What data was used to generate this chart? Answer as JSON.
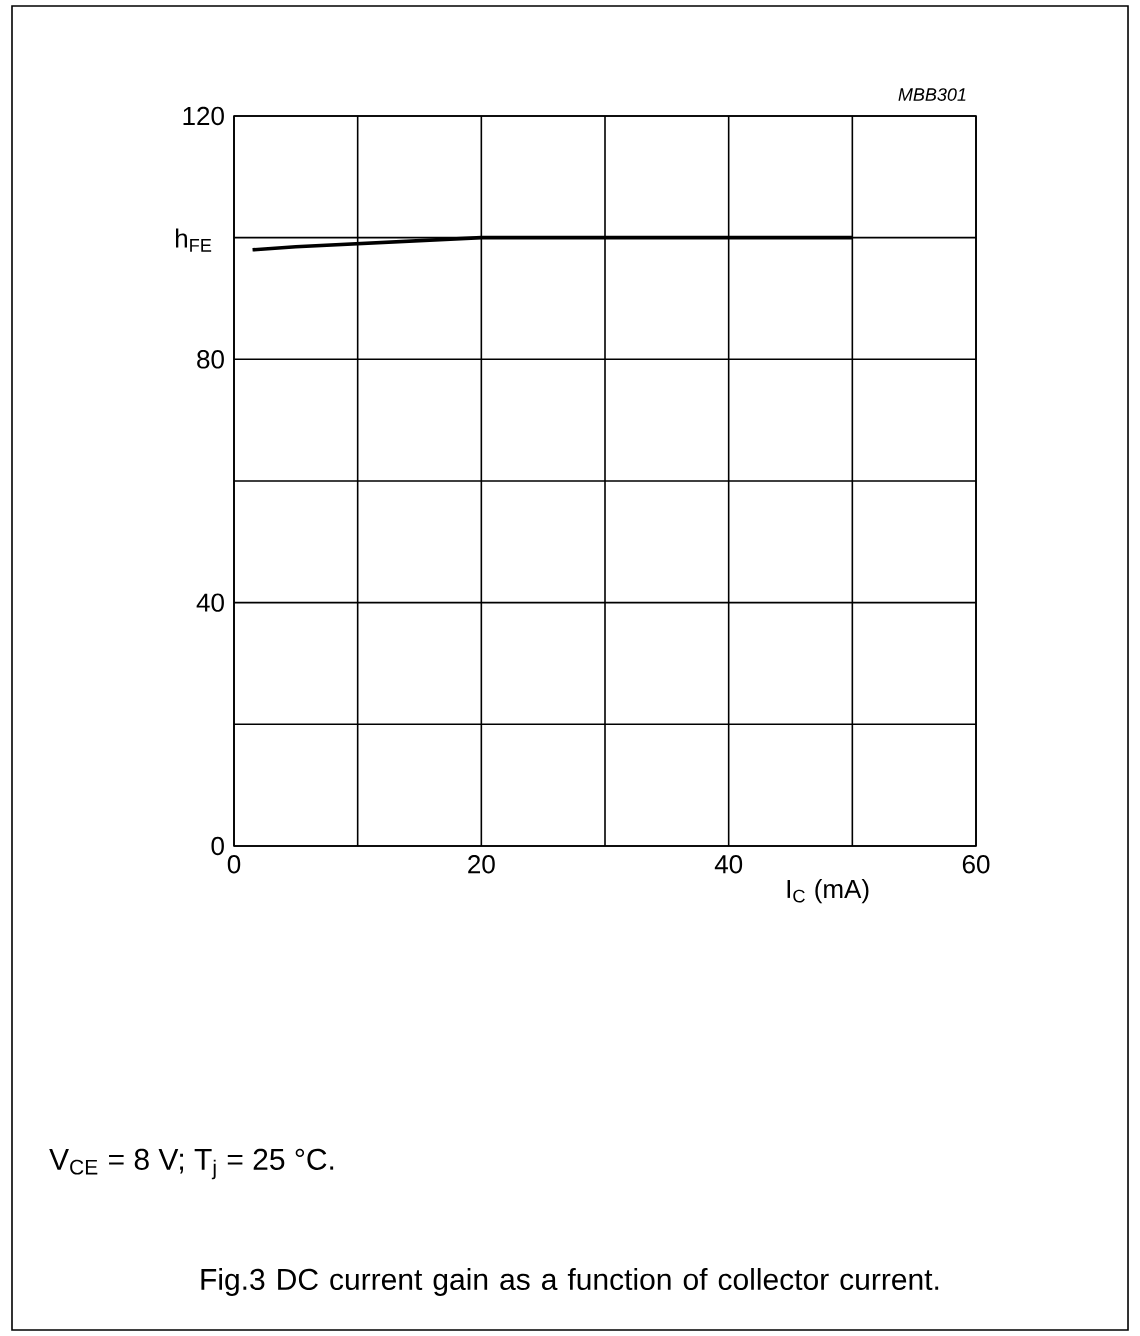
{
  "chart_data": {
    "type": "line",
    "x": [
      1.5,
      5,
      10,
      15,
      20,
      30,
      40,
      50
    ],
    "values": [
      98,
      98.5,
      99,
      99.5,
      100,
      100,
      100,
      100
    ],
    "color": "#000000",
    "xlim": [
      0,
      60
    ],
    "ylim": [
      0,
      120
    ],
    "xticks": [
      0,
      {
        "value": 10,
        "label": null
      },
      20,
      {
        "value": 30,
        "label": null
      },
      40,
      {
        "value": 50,
        "label": null
      },
      60
    ],
    "yticks": [
      0,
      {
        "value": 20,
        "label": null
      },
      40,
      {
        "value": 60,
        "label": null
      },
      80,
      {
        "value": 100,
        "label": null
      },
      120
    ],
    "grid": true,
    "marker": "none",
    "line_style": "solid",
    "xlabel": "I$_{C}$ (mA)",
    "ylabel": "h$_{FE}$",
    "annotations": [
      "MBB301",
      "V$_{CE}$ = 8 V; T$_{j}$ = 25 °C.",
      "Fig.3  DC current gain as a function of collector current."
    ]
  }
}
